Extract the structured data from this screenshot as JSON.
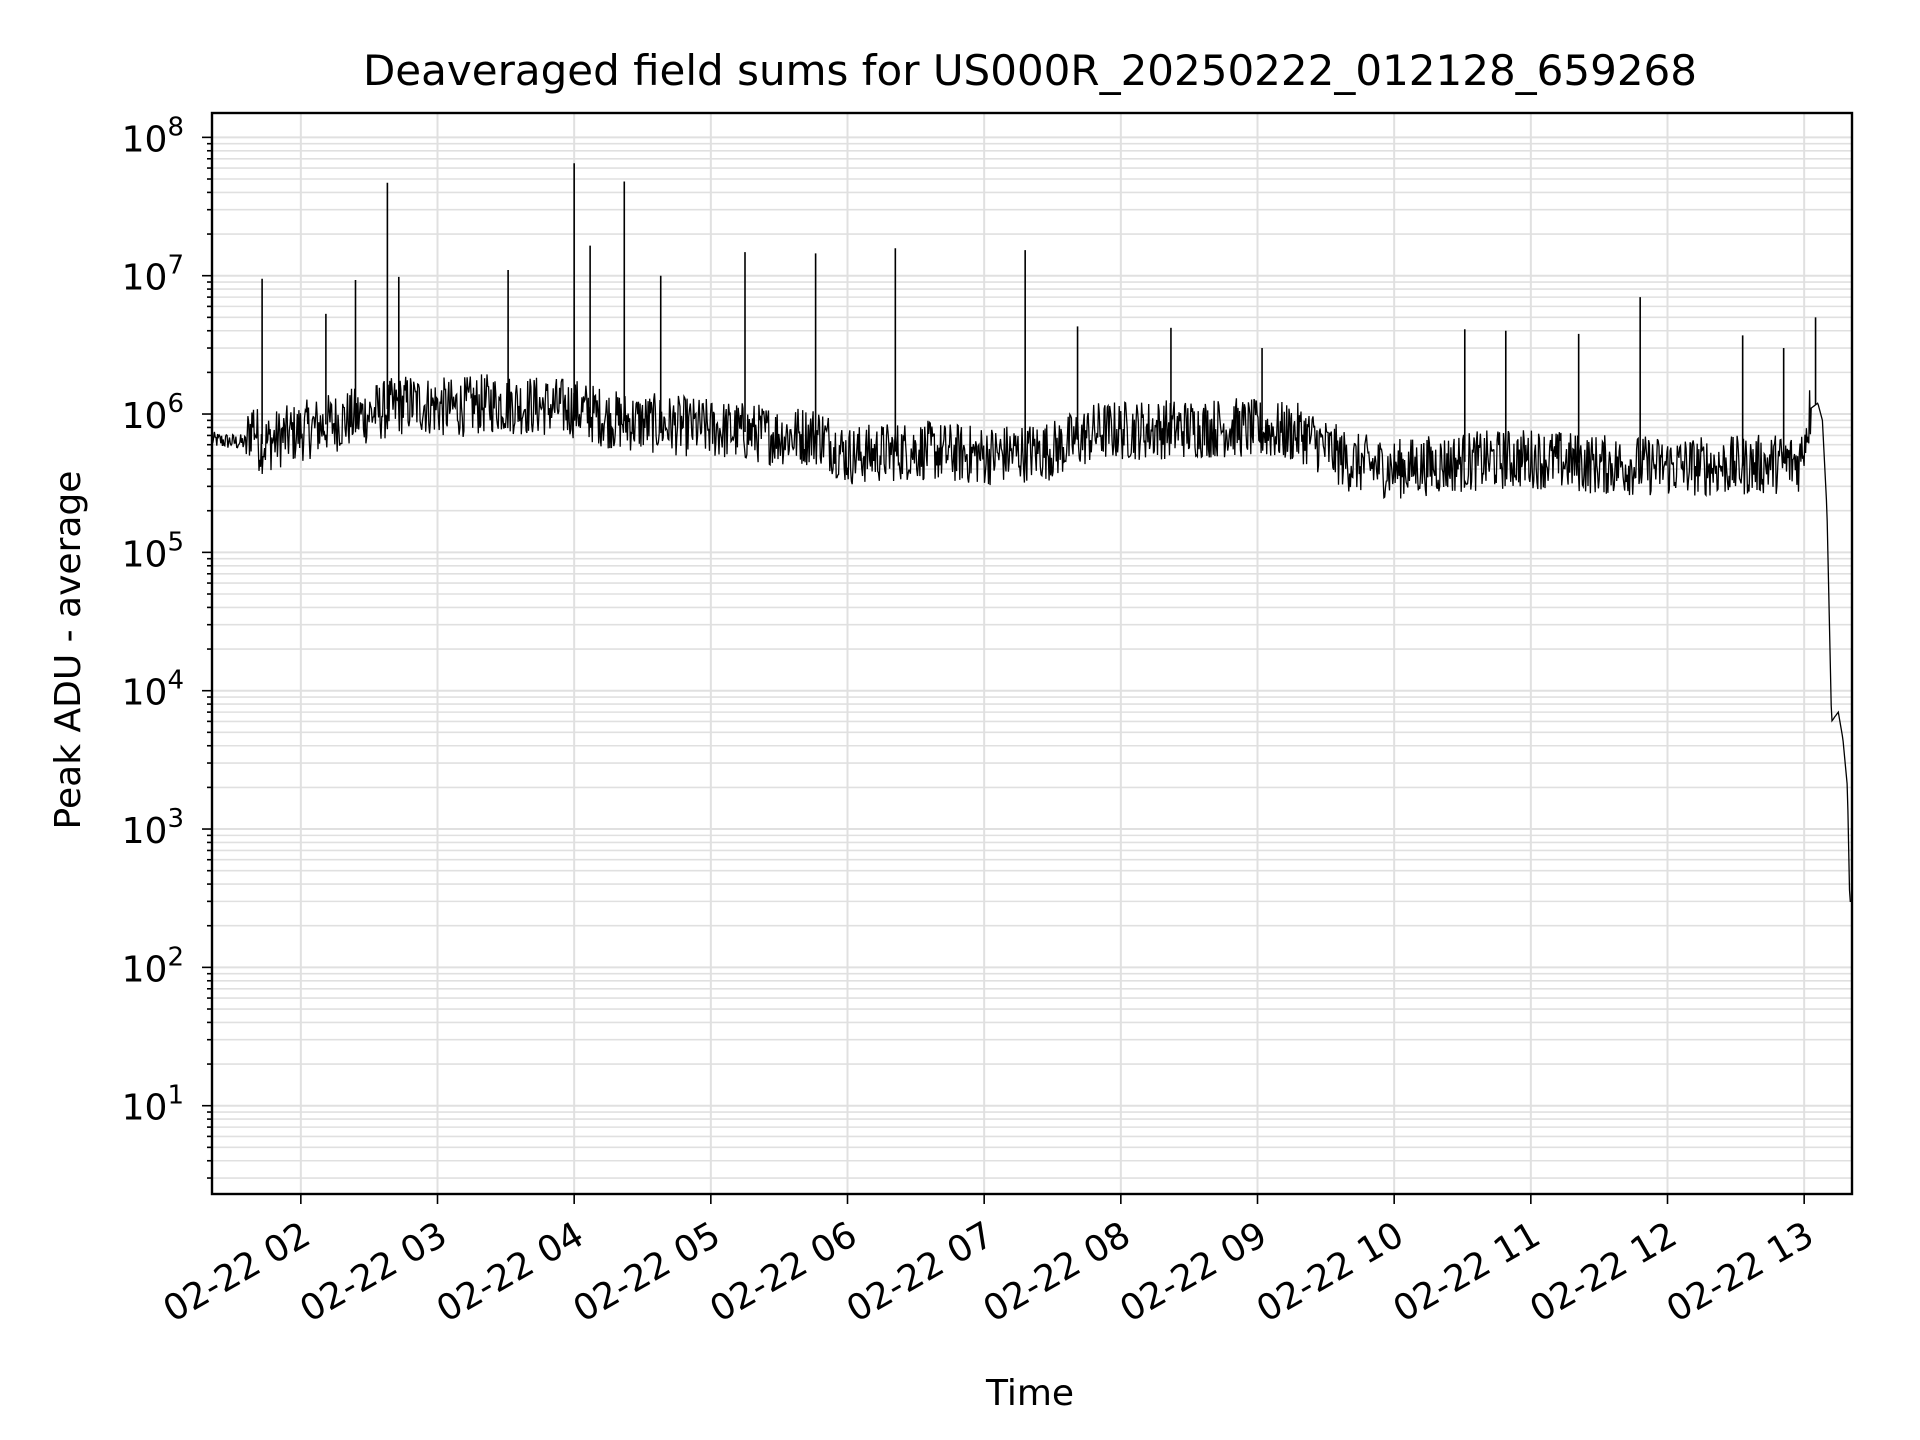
{
  "chart_data": {
    "type": "line",
    "title": "Deaveraged field sums for US000R_20250222_012128_659268",
    "xlabel": "Time",
    "ylabel": "Peak ADU - average",
    "x_tick_labels": [
      "02-22 02",
      "02-22 03",
      "02-22 04",
      "02-22 05",
      "02-22 06",
      "02-22 07",
      "02-22 08",
      "02-22 09",
      "02-22 10",
      "02-22 11",
      "02-22 12",
      "02-22 13"
    ],
    "y_tick_labels": [
      {
        "base": "10",
        "exp": "1"
      },
      {
        "base": "10",
        "exp": "2"
      },
      {
        "base": "10",
        "exp": "3"
      },
      {
        "base": "10",
        "exp": "4"
      },
      {
        "base": "10",
        "exp": "5"
      },
      {
        "base": "10",
        "exp": "6"
      },
      {
        "base": "10",
        "exp": "7"
      },
      {
        "base": "10",
        "exp": "8"
      }
    ],
    "x_range": [
      "2025-02-22 01:21",
      "2025-02-22 13:21"
    ],
    "y_scale": "log",
    "y_range": [
      2.3,
      150000000
    ],
    "grid": true,
    "line_color": "#000000",
    "grid_color": "#e0e0e0",
    "series": [
      {
        "x": [
          "2025-02-22 01:21",
          "2025-02-22 01:36",
          "2025-02-22 01:39",
          "2025-02-22 01:42",
          "2025-02-22 01:54",
          "2025-02-22 02:12",
          "2025-02-22 02:30",
          "2025-02-22 02:48",
          "2025-02-22 03:06",
          "2025-02-22 03:24",
          "2025-02-22 03:42",
          "2025-02-22 04:00",
          "2025-02-22 04:18",
          "2025-02-22 04:36",
          "2025-02-22 04:54",
          "2025-02-22 05:12",
          "2025-02-22 05:30",
          "2025-02-22 05:48",
          "2025-02-22 06:00",
          "2025-02-22 06:30",
          "2025-02-22 07:00",
          "2025-02-22 07:30",
          "2025-02-22 07:50",
          "2025-02-22 08:20",
          "2025-02-22 08:50",
          "2025-02-22 09:20",
          "2025-02-22 09:40",
          "2025-02-22 10:00",
          "2025-02-22 10:30",
          "2025-02-22 11:00",
          "2025-02-22 11:30",
          "2025-02-22 12:00",
          "2025-02-22 12:30",
          "2025-02-22 12:58",
          "2025-02-22 13:03",
          "2025-02-22 13:06",
          "2025-02-22 13:08",
          "2025-02-22 13:10",
          "2025-02-22 13:12",
          "2025-02-22 13:15",
          "2025-02-22 13:17",
          "2025-02-22 13:19",
          "2025-02-22 13:20"
        ],
        "y": [
          650000,
          620000,
          900000,
          600000,
          700000,
          850000,
          1000000,
          1200000,
          1100000,
          1200000,
          1150000,
          1100000,
          900000,
          850000,
          800000,
          750000,
          700000,
          700000,
          500000,
          550000,
          500000,
          550000,
          750000,
          780000,
          800000,
          720000,
          450000,
          400000,
          450000,
          480000,
          430000,
          420000,
          420000,
          450000,
          1100000,
          1200000,
          900000,
          200000,
          6000,
          7000,
          4500,
          2000,
          300
        ]
      }
    ],
    "spikes": {
      "x": [
        "2025-02-22 01:43",
        "2025-02-22 02:11",
        "2025-02-22 02:24",
        "2025-02-22 02:38",
        "2025-02-22 02:43",
        "2025-02-22 03:31",
        "2025-02-22 04:00",
        "2025-02-22 04:07",
        "2025-02-22 04:22",
        "2025-02-22 04:38",
        "2025-02-22 05:15",
        "2025-02-22 05:46",
        "2025-02-22 06:21",
        "2025-02-22 07:18",
        "2025-02-22 07:41",
        "2025-02-22 08:22",
        "2025-02-22 09:02",
        "2025-02-22 10:31",
        "2025-02-22 10:49",
        "2025-02-22 11:21",
        "2025-02-22 11:48",
        "2025-02-22 12:33",
        "2025-02-22 12:51",
        "2025-02-22 13:05"
      ],
      "y": [
        9500000,
        5300000,
        9300000,
        47000000,
        9800000,
        11000000,
        65000000,
        16500000,
        48000000,
        10000000,
        14800000,
        14500000,
        15800000,
        15300000,
        4300000,
        4200000,
        3000000,
        4100000,
        4000000,
        3800000,
        7000000,
        3700000,
        3000000,
        5000000
      ]
    }
  }
}
